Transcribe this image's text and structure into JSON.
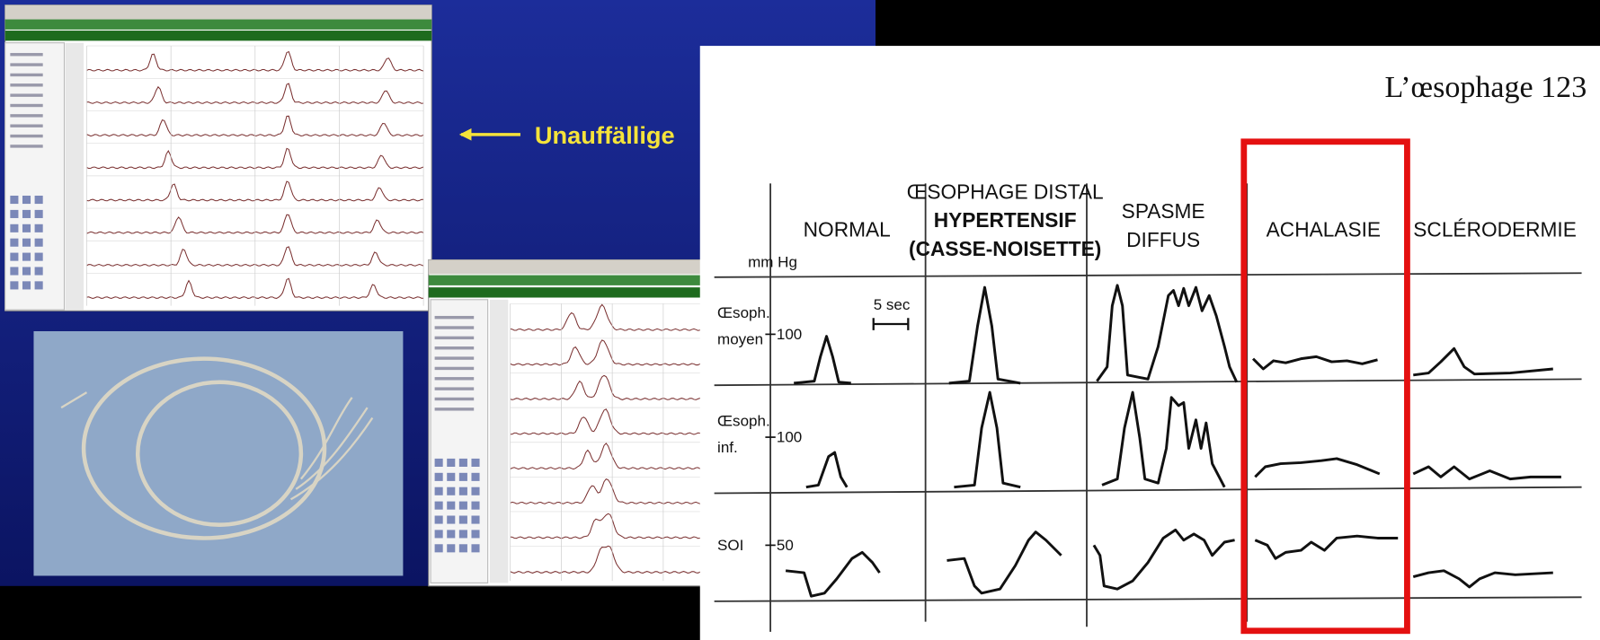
{
  "slide": {
    "label": "Unauffällige"
  },
  "figure": {
    "page_header": "L’œsophage 123",
    "y_unit": "mm Hg",
    "scale_label": "5 sec",
    "columns": [
      [
        "NORMAL"
      ],
      [
        "ŒSOPHAGE DISTAL",
        "HYPERTENSIF",
        "(CASSE-NOISETTE)"
      ],
      [
        "SPASME",
        "DIFFUS"
      ],
      [
        "ACHALASIE"
      ],
      [
        "SCLÉRODERMIE"
      ]
    ],
    "rows": [
      {
        "label": [
          "Œsoph.",
          "moyen"
        ],
        "tick": "100"
      },
      {
        "label": [
          "Œsoph.",
          "inf."
        ],
        "tick": "100"
      },
      {
        "label": [
          "SOI"
        ],
        "tick": "50"
      }
    ]
  }
}
